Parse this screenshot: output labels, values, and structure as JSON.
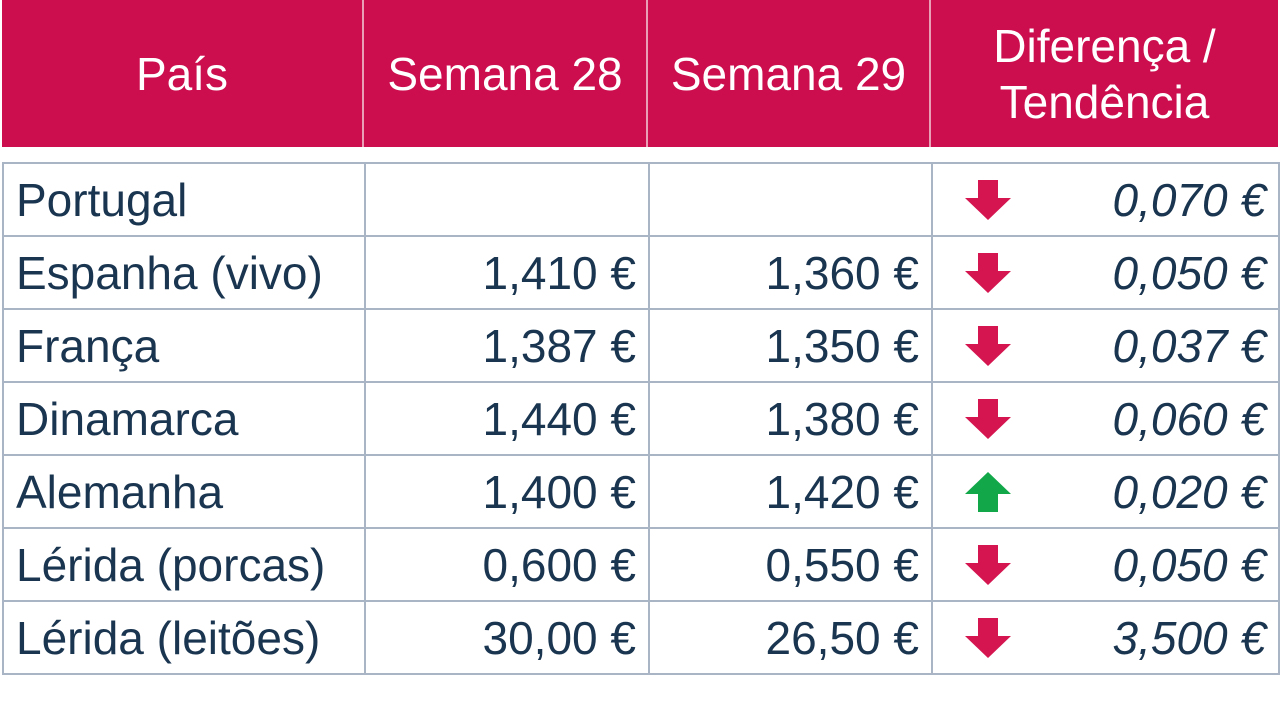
{
  "colors": {
    "header_bg": "#cc0e4e",
    "header_text": "#ffffff",
    "body_text": "#1a3550",
    "down_arrow": "#d41550",
    "up_arrow": "#12a84a"
  },
  "header": {
    "country": "País",
    "week28": "Semana 28",
    "week29": "Semana 29",
    "diff_line1": "Diferença /",
    "diff_line2": "Tendência"
  },
  "rows": [
    {
      "country": "Portugal",
      "week28": "",
      "week29": "",
      "trend": "down",
      "diff": "0,070 €"
    },
    {
      "country": "Espanha (vivo)",
      "week28": "1,410 €",
      "week29": "1,360 €",
      "trend": "down",
      "diff": "0,050 €"
    },
    {
      "country": "França",
      "week28": "1,387 €",
      "week29": "1,350 €",
      "trend": "down",
      "diff": "0,037 €"
    },
    {
      "country": "Dinamarca",
      "week28": "1,440 €",
      "week29": "1,380 €",
      "trend": "down",
      "diff": "0,060 €"
    },
    {
      "country": "Alemanha",
      "week28": "1,400 €",
      "week29": "1,420 €",
      "trend": "up",
      "diff": "0,020 €"
    },
    {
      "country": "Lérida (porcas)",
      "week28": "0,600 €",
      "week29": "0,550 €",
      "trend": "down",
      "diff": "0,050 €"
    },
    {
      "country": "Lérida (leitões)",
      "week28": "30,00 €",
      "week29": "26,50 €",
      "trend": "down",
      "diff": "3,500 €"
    }
  ]
}
